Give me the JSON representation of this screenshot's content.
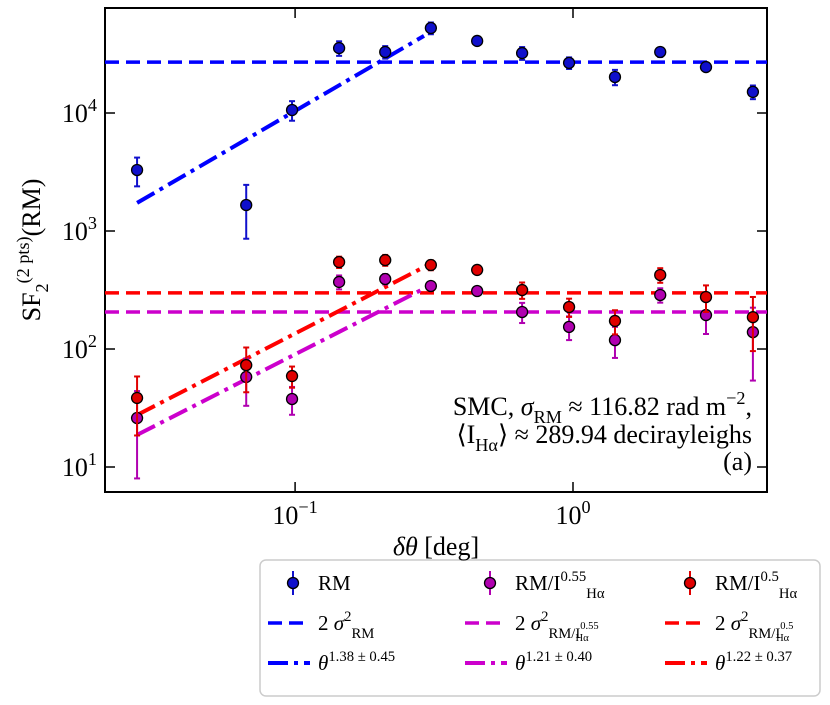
{
  "chart_data": {
    "type": "scatter",
    "xlabel": [
      {
        "t": "δθ",
        "i": true
      },
      {
        "t": " [deg]"
      }
    ],
    "ylabel": [
      {
        "t": "SF"
      },
      {
        "t": "2",
        "s": "sub"
      },
      {
        "t": "(2 pts)",
        "s": "sup"
      },
      {
        "t": "(RM)"
      }
    ],
    "log_x": true,
    "log_y": true,
    "xlim": [
      0.0207,
      4.99
    ],
    "ylim": [
      6.14,
      77600
    ],
    "xticks": [
      {
        "value": 0.1,
        "label": [
          {
            "t": "10"
          },
          {
            "t": "−1",
            "s": "sup"
          }
        ]
      },
      {
        "value": 1,
        "label": [
          {
            "t": "10"
          },
          {
            "t": "0",
            "s": "sup"
          }
        ]
      }
    ],
    "yticks": [
      {
        "value": 10,
        "label": [
          {
            "t": "10"
          },
          {
            "t": "1",
            "s": "sup"
          }
        ]
      },
      {
        "value": 100,
        "label": [
          {
            "t": "10"
          },
          {
            "t": "2",
            "s": "sup"
          }
        ]
      },
      {
        "value": 1000,
        "label": [
          {
            "t": "10"
          },
          {
            "t": "3",
            "s": "sup"
          }
        ]
      },
      {
        "value": 10000,
        "label": [
          {
            "t": "10"
          },
          {
            "t": "4",
            "s": "sup"
          }
        ]
      }
    ],
    "x": [
      0.027,
      0.0667,
      0.0975,
      0.144,
      0.211,
      0.308,
      0.452,
      0.656,
      0.968,
      1.416,
      2.06,
      3.01,
      4.44
    ],
    "series": [
      {
        "name": [
          {
            "t": "RM"
          }
        ],
        "color": "#1010cc",
        "values": [
          3290,
          1660,
          10600,
          35500,
          32900,
          52500,
          40800,
          32200,
          26600,
          20200,
          32900,
          24500,
          15100
        ],
        "errors": [
          900,
          800,
          2000,
          5000,
          4000,
          6000,
          2000,
          4000,
          3000,
          3000,
          3000,
          2000,
          2000
        ]
      },
      {
        "name": [
          {
            "t": "RM/I"
          },
          {
            "t": "0.55",
            "s": "sup"
          },
          {
            "t": "Hα",
            "s": "subx"
          }
        ],
        "color": "#b000b0",
        "values": [
          26,
          58,
          37.7,
          370,
          392,
          342,
          310,
          206,
          154,
          119,
          287,
          194,
          139
        ],
        "errors": [
          18,
          25,
          10,
          50,
          40,
          20,
          15,
          40,
          35,
          35,
          40,
          60,
          85
        ]
      },
      {
        "name": [
          {
            "t": "RM/I"
          },
          {
            "t": "0.5",
            "s": "sup"
          },
          {
            "t": "Hα",
            "s": "subx"
          }
        ],
        "color": "#e00000",
        "values": [
          38.5,
          73,
          59,
          546,
          567,
          515,
          468,
          316,
          227,
          173,
          424,
          276,
          186
        ],
        "errors": [
          20,
          30,
          12,
          60,
          60,
          50,
          20,
          50,
          40,
          40,
          60,
          70,
          90
        ]
      }
    ],
    "hlines": [
      {
        "label": [
          {
            "t": "2 "
          },
          {
            "t": "σ",
            "i": true
          },
          {
            "t": "2",
            "s": "sup"
          },
          {
            "t": "RM",
            "s": "subx"
          }
        ],
        "value": 27000,
        "color": "#0000ff"
      },
      {
        "label": [
          {
            "t": "2 "
          },
          {
            "t": "σ",
            "i": true
          },
          {
            "t": "2",
            "s": "sup"
          },
          {
            "t": "RM/I",
            "s": "subx"
          },
          {
            "t": "0.55",
            "s": "subsup"
          },
          {
            "t": "Hα",
            "s": "subsub"
          }
        ],
        "value": 206,
        "color": "#cc00cc"
      },
      {
        "label": [
          {
            "t": "2 "
          },
          {
            "t": "σ",
            "i": true
          },
          {
            "t": "2",
            "s": "sup"
          },
          {
            "t": "RM/I",
            "s": "subx"
          },
          {
            "t": "0.5",
            "s": "subsup"
          },
          {
            "t": "Hα",
            "s": "subsub"
          }
        ],
        "value": 299,
        "color": "#ff0000"
      }
    ],
    "fits": [
      {
        "label": [
          {
            "t": "θ",
            "i": true
          },
          {
            "t": "1.38 ± 0.45",
            "s": "sup"
          }
        ],
        "x": [
          0.027,
          0.291
        ],
        "y": [
          1730,
          45000
        ],
        "color": "#0000ff"
      },
      {
        "label": [
          {
            "t": "θ",
            "i": true
          },
          {
            "t": "1.21 ± 0.40",
            "s": "sup"
          }
        ],
        "x": [
          0.027,
          0.308
        ],
        "y": [
          18.7,
          348
        ],
        "color": "#cc00cc"
      },
      {
        "label": [
          {
            "t": "θ",
            "i": true
          },
          {
            "t": "1.22 ± 0.37",
            "s": "sup"
          }
        ],
        "x": [
          0.027,
          0.311
        ],
        "y": [
          27.6,
          536
        ],
        "color": "#ff0000"
      }
    ],
    "annotations": [
      [
        {
          "t": "SMC, "
        },
        {
          "t": "σ",
          "i": true
        },
        {
          "t": "RM",
          "s": "sub"
        },
        {
          "t": " ≈ 116.82 rad m"
        },
        {
          "t": "−2",
          "s": "sup"
        },
        {
          "t": ","
        }
      ],
      [
        {
          "t": "⟨I"
        },
        {
          "t": "Hα",
          "s": "sub"
        },
        {
          "t": "⟩ ≈ 289.94 decirayleighs"
        }
      ],
      [
        {
          "t": "(a)"
        }
      ]
    ]
  }
}
